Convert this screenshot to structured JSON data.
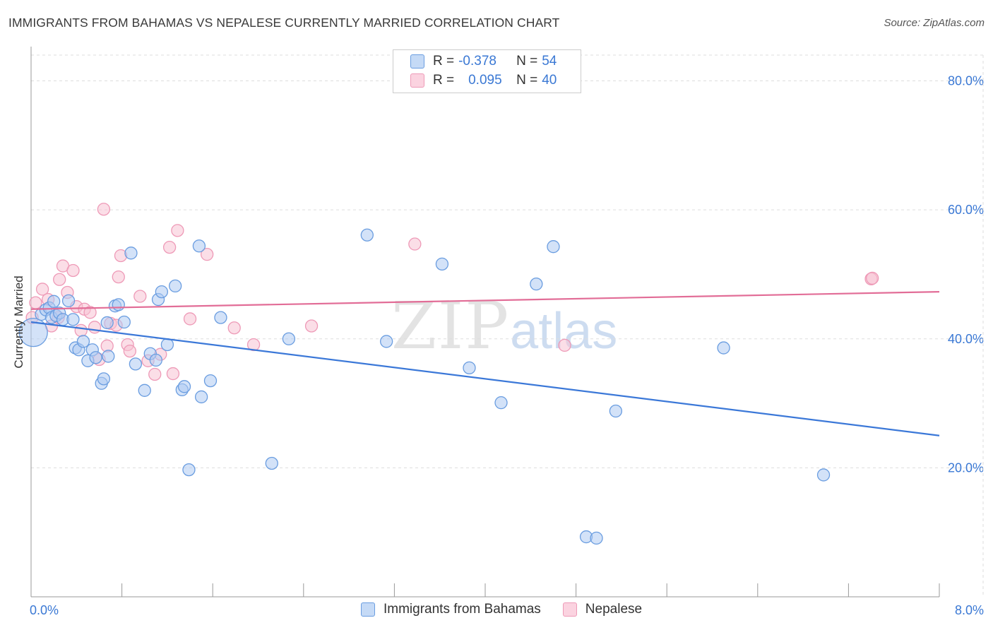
{
  "title": "IMMIGRANTS FROM BAHAMAS VS NEPALESE CURRENTLY MARRIED CORRELATION CHART",
  "source": "Source: ZipAtlas.com",
  "watermark": {
    "zip": "ZIP",
    "atlas": "atlas"
  },
  "colors": {
    "blue": "#3b78d8",
    "blue_fill": "#aecbf2",
    "blue_stroke": "#6a9de0",
    "pink": "#e26d97",
    "pink_fill": "#f7c2d3",
    "pink_stroke": "#ee9ab7",
    "grid": "#dddddd",
    "tick_text": "#3a78d4"
  },
  "legend": {
    "rows": [
      {
        "swatch": "blue",
        "r_label": "R =",
        "r_value": "-0.378",
        "n_label": "N =",
        "n_value": "54"
      },
      {
        "swatch": "pink",
        "r_label": "R =",
        "r_value": "0.095",
        "n_label": "N =",
        "n_value": "40"
      }
    ]
  },
  "bottom_legend": [
    {
      "swatch": "blue",
      "label": "Immigrants from Bahamas"
    },
    {
      "swatch": "pink",
      "label": "Nepalese"
    }
  ],
  "chart_data": {
    "type": "scatter",
    "title": "IMMIGRANTS FROM BAHAMAS VS NEPALESE CURRENTLY MARRIED CORRELATION CHART",
    "xlabel": "",
    "ylabel": "Currently Married",
    "xlim": [
      0,
      8
    ],
    "ylim": [
      0,
      84
    ],
    "x_tick_labels": [
      {
        "value": 0,
        "label": "0.0%"
      },
      {
        "value": 8,
        "label": "8.0%"
      }
    ],
    "x_minor_ticks": [
      0,
      0.8,
      1.6,
      2.4,
      3.2,
      4.0,
      4.8,
      5.6,
      6.4,
      7.2,
      8.0
    ],
    "y_ticks": [
      {
        "value": 20,
        "label": "20.0%"
      },
      {
        "value": 40,
        "label": "40.0%"
      },
      {
        "value": 60,
        "label": "60.0%"
      },
      {
        "value": 80,
        "label": "80.0%"
      }
    ],
    "grid": true,
    "series": [
      {
        "name": "Immigrants from Bahamas",
        "color": "blue",
        "trend": {
          "x0": 0,
          "y0": 42.6,
          "x1": 8,
          "y1": 25.0
        },
        "points": [
          {
            "x": 0.02,
            "y": 41.0,
            "big": true
          },
          {
            "x": 0.09,
            "y": 43.8
          },
          {
            "x": 0.13,
            "y": 44.5
          },
          {
            "x": 0.16,
            "y": 44.8
          },
          {
            "x": 0.18,
            "y": 43.3
          },
          {
            "x": 0.2,
            "y": 45.8
          },
          {
            "x": 0.22,
            "y": 43.6
          },
          {
            "x": 0.25,
            "y": 44.0
          },
          {
            "x": 0.28,
            "y": 43.0
          },
          {
            "x": 0.33,
            "y": 45.9
          },
          {
            "x": 0.37,
            "y": 43.0
          },
          {
            "x": 0.39,
            "y": 38.6
          },
          {
            "x": 0.42,
            "y": 38.3
          },
          {
            "x": 0.46,
            "y": 39.6
          },
          {
            "x": 0.5,
            "y": 36.6
          },
          {
            "x": 0.54,
            "y": 38.3
          },
          {
            "x": 0.57,
            "y": 37.1
          },
          {
            "x": 0.62,
            "y": 33.1
          },
          {
            "x": 0.64,
            "y": 33.8
          },
          {
            "x": 0.68,
            "y": 37.3
          },
          {
            "x": 0.67,
            "y": 42.5
          },
          {
            "x": 0.74,
            "y": 45.1
          },
          {
            "x": 0.77,
            "y": 45.3
          },
          {
            "x": 0.82,
            "y": 42.6
          },
          {
            "x": 0.88,
            "y": 53.3
          },
          {
            "x": 0.92,
            "y": 36.1
          },
          {
            "x": 1.0,
            "y": 32.0
          },
          {
            "x": 1.05,
            "y": 37.7
          },
          {
            "x": 1.1,
            "y": 36.7
          },
          {
            "x": 1.12,
            "y": 46.1
          },
          {
            "x": 1.15,
            "y": 47.3
          },
          {
            "x": 1.2,
            "y": 39.1
          },
          {
            "x": 1.27,
            "y": 48.2
          },
          {
            "x": 1.33,
            "y": 32.1
          },
          {
            "x": 1.35,
            "y": 32.6
          },
          {
            "x": 1.39,
            "y": 19.7
          },
          {
            "x": 1.48,
            "y": 54.4
          },
          {
            "x": 1.5,
            "y": 31.0
          },
          {
            "x": 1.58,
            "y": 33.5
          },
          {
            "x": 1.67,
            "y": 43.3
          },
          {
            "x": 2.12,
            "y": 20.7
          },
          {
            "x": 2.27,
            "y": 40.0
          },
          {
            "x": 2.96,
            "y": 56.1
          },
          {
            "x": 3.13,
            "y": 39.6
          },
          {
            "x": 3.62,
            "y": 51.6
          },
          {
            "x": 3.86,
            "y": 35.5
          },
          {
            "x": 4.14,
            "y": 30.1
          },
          {
            "x": 4.45,
            "y": 48.5
          },
          {
            "x": 4.6,
            "y": 54.3
          },
          {
            "x": 4.89,
            "y": 9.3
          },
          {
            "x": 4.98,
            "y": 9.1
          },
          {
            "x": 5.15,
            "y": 28.8
          },
          {
            "x": 6.1,
            "y": 38.6
          },
          {
            "x": 6.98,
            "y": 18.9
          }
        ]
      },
      {
        "name": "Nepalese",
        "color": "pink",
        "trend": {
          "x0": 0,
          "y0": 44.6,
          "x1": 8,
          "y1": 47.3
        },
        "points": [
          {
            "x": 0.01,
            "y": 43.3
          },
          {
            "x": 0.04,
            "y": 45.6
          },
          {
            "x": 0.1,
            "y": 47.7
          },
          {
            "x": 0.15,
            "y": 46.1
          },
          {
            "x": 0.18,
            "y": 42.0
          },
          {
            "x": 0.24,
            "y": 43.3
          },
          {
            "x": 0.25,
            "y": 49.2
          },
          {
            "x": 0.28,
            "y": 51.3
          },
          {
            "x": 0.32,
            "y": 47.2
          },
          {
            "x": 0.37,
            "y": 50.6
          },
          {
            "x": 0.4,
            "y": 45.0
          },
          {
            "x": 0.44,
            "y": 41.3
          },
          {
            "x": 0.47,
            "y": 44.6
          },
          {
            "x": 0.52,
            "y": 44.1
          },
          {
            "x": 0.56,
            "y": 41.8
          },
          {
            "x": 0.6,
            "y": 36.8
          },
          {
            "x": 0.64,
            "y": 60.1
          },
          {
            "x": 0.67,
            "y": 38.9
          },
          {
            "x": 0.7,
            "y": 42.4
          },
          {
            "x": 0.75,
            "y": 42.1
          },
          {
            "x": 0.77,
            "y": 49.6
          },
          {
            "x": 0.79,
            "y": 52.9
          },
          {
            "x": 0.85,
            "y": 39.1
          },
          {
            "x": 0.87,
            "y": 38.1
          },
          {
            "x": 0.96,
            "y": 46.6
          },
          {
            "x": 1.03,
            "y": 36.6
          },
          {
            "x": 1.09,
            "y": 34.5
          },
          {
            "x": 1.14,
            "y": 37.6
          },
          {
            "x": 1.22,
            "y": 54.2
          },
          {
            "x": 1.25,
            "y": 34.6
          },
          {
            "x": 1.29,
            "y": 56.8
          },
          {
            "x": 1.4,
            "y": 43.1
          },
          {
            "x": 1.55,
            "y": 53.1
          },
          {
            "x": 1.79,
            "y": 41.7
          },
          {
            "x": 1.96,
            "y": 39.1
          },
          {
            "x": 2.47,
            "y": 42.0
          },
          {
            "x": 3.38,
            "y": 54.7
          },
          {
            "x": 4.7,
            "y": 39.0
          },
          {
            "x": 7.4,
            "y": 49.3
          },
          {
            "x": 7.41,
            "y": 49.4
          }
        ]
      }
    ]
  }
}
